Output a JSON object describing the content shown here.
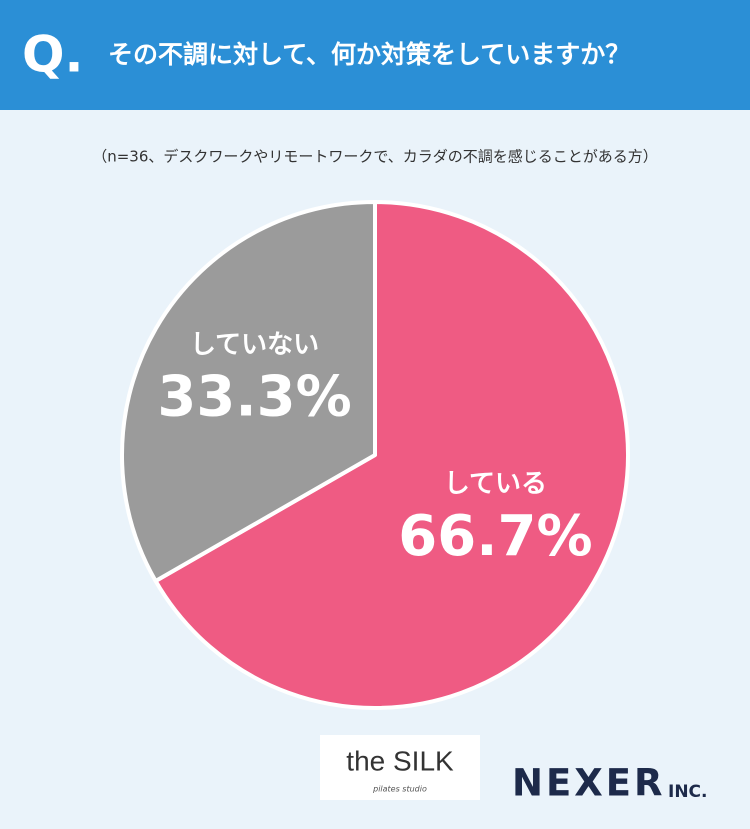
{
  "chart_data": {
    "type": "pie",
    "title_prefix": "Q.",
    "title": "その不調に対して、何か対策をしていますか？",
    "subtitle": "（n=36、デスクワークやリモートワークで、カラダの不調を感じることがある方）",
    "categories": [
      "している",
      "していない"
    ],
    "values": [
      66.7,
      33.3
    ],
    "value_labels": [
      "66.7%",
      "33.3%"
    ],
    "colors": [
      "#ef5b83",
      "#9b9b9b"
    ]
  },
  "logos": {
    "silk": "the SILK",
    "silk_sub": "pilates studio",
    "nexer": "NEXER",
    "nexer_suffix": "INC."
  }
}
